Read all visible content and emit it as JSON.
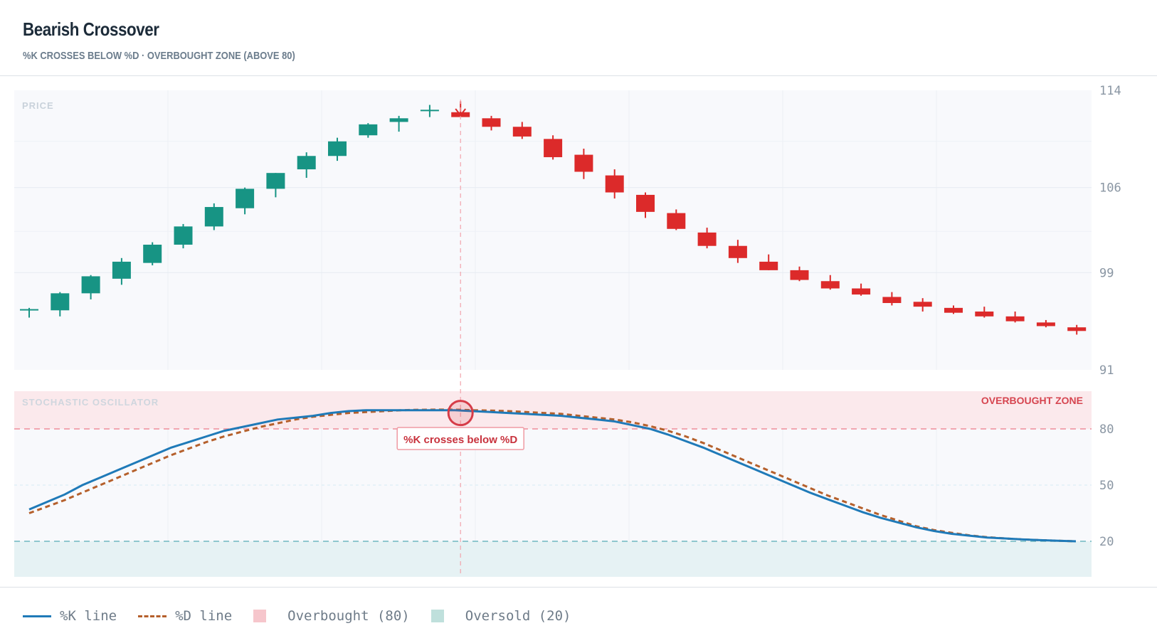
{
  "header": {
    "title": "Bearish Crossover",
    "subtitle": "%K CROSSES BELOW %D · OVERBOUGHT ZONE (ABOVE 80)"
  },
  "colors": {
    "bull": "#179484",
    "bear": "#dc2a2a",
    "k_line": "#1f7ab8",
    "d_line": "#b5602c",
    "overbought_fill": "#fbe9ec",
    "oversold_fill": "#e6f2f4",
    "panel_bg": "#f8f9fc",
    "axis_text": "#8a96a3"
  },
  "chart_data": [
    {
      "type": "candlestick",
      "panel_label": "PRICE",
      "ylim": [
        91,
        114
      ],
      "yticks": [
        "114",
        "106",
        "99",
        "91"
      ],
      "ytick_values": [
        114,
        106,
        99,
        91
      ],
      "candles": [
        {
          "o": 95.9,
          "h": 96.1,
          "l": 95.3,
          "c": 96.0
        },
        {
          "o": 95.9,
          "h": 97.4,
          "l": 95.4,
          "c": 97.3
        },
        {
          "o": 97.3,
          "h": 98.8,
          "l": 96.8,
          "c": 98.7
        },
        {
          "o": 98.5,
          "h": 100.2,
          "l": 98.0,
          "c": 99.9
        },
        {
          "o": 99.8,
          "h": 101.5,
          "l": 99.6,
          "c": 101.3
        },
        {
          "o": 101.3,
          "h": 103.0,
          "l": 101.0,
          "c": 102.8
        },
        {
          "o": 102.8,
          "h": 104.7,
          "l": 102.5,
          "c": 104.4
        },
        {
          "o": 104.3,
          "h": 106.0,
          "l": 103.8,
          "c": 105.9
        },
        {
          "o": 105.9,
          "h": 107.2,
          "l": 105.2,
          "c": 107.2
        },
        {
          "o": 107.5,
          "h": 108.9,
          "l": 106.8,
          "c": 108.6
        },
        {
          "o": 108.6,
          "h": 110.1,
          "l": 108.2,
          "c": 109.8
        },
        {
          "o": 110.3,
          "h": 111.3,
          "l": 110.1,
          "c": 111.2
        },
        {
          "o": 111.4,
          "h": 111.9,
          "l": 110.6,
          "c": 111.7
        },
        {
          "o": 112.4,
          "h": 112.8,
          "l": 111.8,
          "c": 112.4
        },
        {
          "o": 112.2,
          "h": 113.1,
          "l": 111.9,
          "c": 111.8
        },
        {
          "o": 111.7,
          "h": 111.9,
          "l": 110.7,
          "c": 111.0
        },
        {
          "o": 111.0,
          "h": 111.4,
          "l": 110.0,
          "c": 110.2
        },
        {
          "o": 110.0,
          "h": 110.3,
          "l": 108.3,
          "c": 108.5
        },
        {
          "o": 108.7,
          "h": 109.2,
          "l": 106.7,
          "c": 107.3
        },
        {
          "o": 107.0,
          "h": 107.5,
          "l": 105.1,
          "c": 105.6
        },
        {
          "o": 105.4,
          "h": 105.6,
          "l": 103.5,
          "c": 104.0
        },
        {
          "o": 103.9,
          "h": 104.2,
          "l": 102.5,
          "c": 102.6
        },
        {
          "o": 102.3,
          "h": 102.7,
          "l": 101.0,
          "c": 101.2
        },
        {
          "o": 101.2,
          "h": 101.7,
          "l": 99.8,
          "c": 100.2
        },
        {
          "o": 99.9,
          "h": 100.5,
          "l": 99.2,
          "c": 99.2
        },
        {
          "o": 99.2,
          "h": 99.5,
          "l": 98.3,
          "c": 98.4
        },
        {
          "o": 98.3,
          "h": 98.8,
          "l": 97.6,
          "c": 97.7
        },
        {
          "o": 97.7,
          "h": 98.1,
          "l": 97.1,
          "c": 97.2
        },
        {
          "o": 97.0,
          "h": 97.4,
          "l": 96.3,
          "c": 96.5
        },
        {
          "o": 96.6,
          "h": 96.9,
          "l": 95.8,
          "c": 96.2
        },
        {
          "o": 96.1,
          "h": 96.3,
          "l": 95.6,
          "c": 95.7
        },
        {
          "o": 95.8,
          "h": 96.2,
          "l": 95.3,
          "c": 95.4
        },
        {
          "o": 95.4,
          "h": 95.8,
          "l": 94.9,
          "c": 95.0
        },
        {
          "o": 94.9,
          "h": 95.1,
          "l": 94.5,
          "c": 94.6
        },
        {
          "o": 94.5,
          "h": 94.7,
          "l": 93.9,
          "c": 94.2
        }
      ]
    },
    {
      "type": "line",
      "panel_label": "STOCHASTIC OSCILLATOR",
      "zone_label": "OVERBOUGHT ZONE",
      "ylim": [
        0,
        100
      ],
      "yticks": [
        "80",
        "50",
        "20"
      ],
      "ytick_values": [
        80,
        50,
        20
      ],
      "overbought": 80,
      "oversold": 20,
      "series": [
        {
          "name": "%K line",
          "values": [
            37,
            41,
            45,
            50,
            54,
            58,
            62,
            66,
            70,
            73,
            76,
            79,
            81,
            83,
            85,
            86,
            87,
            88.5,
            89.5,
            90,
            90,
            90,
            90,
            90,
            90,
            89.5,
            89,
            88.5,
            88,
            87.5,
            87,
            86,
            85,
            84,
            82,
            80,
            77,
            73.5,
            70,
            66,
            62,
            58,
            54,
            50,
            46,
            42.5,
            39,
            35.5,
            32.5,
            30,
            27.5,
            25.5,
            24,
            23,
            22,
            21.5,
            21,
            20.6,
            20.3,
            20
          ]
        },
        {
          "name": "%D line",
          "values": [
            35,
            38.5,
            42,
            46,
            50,
            54,
            58,
            62,
            66,
            69.5,
            73,
            76,
            78.5,
            81,
            83,
            85,
            86.5,
            87.5,
            88.5,
            89,
            89.5,
            90,
            90.2,
            90.3,
            90.3,
            90,
            89.8,
            89.5,
            89,
            88.5,
            88,
            87,
            86,
            85,
            83.5,
            81.5,
            79,
            76,
            72.5,
            68.5,
            64.5,
            60.5,
            56.5,
            52.5,
            48.5,
            44.5,
            41,
            37.5,
            34,
            31,
            28,
            26,
            24.5,
            23.2,
            22.2,
            21.5,
            21,
            20.6,
            20.3,
            20
          ]
        }
      ],
      "annotation": "%K crosses below %D"
    }
  ],
  "legend": {
    "k": "%K line",
    "d": "%D line",
    "overbought": "Overbought (80)",
    "oversold": "Oversold (20)"
  }
}
